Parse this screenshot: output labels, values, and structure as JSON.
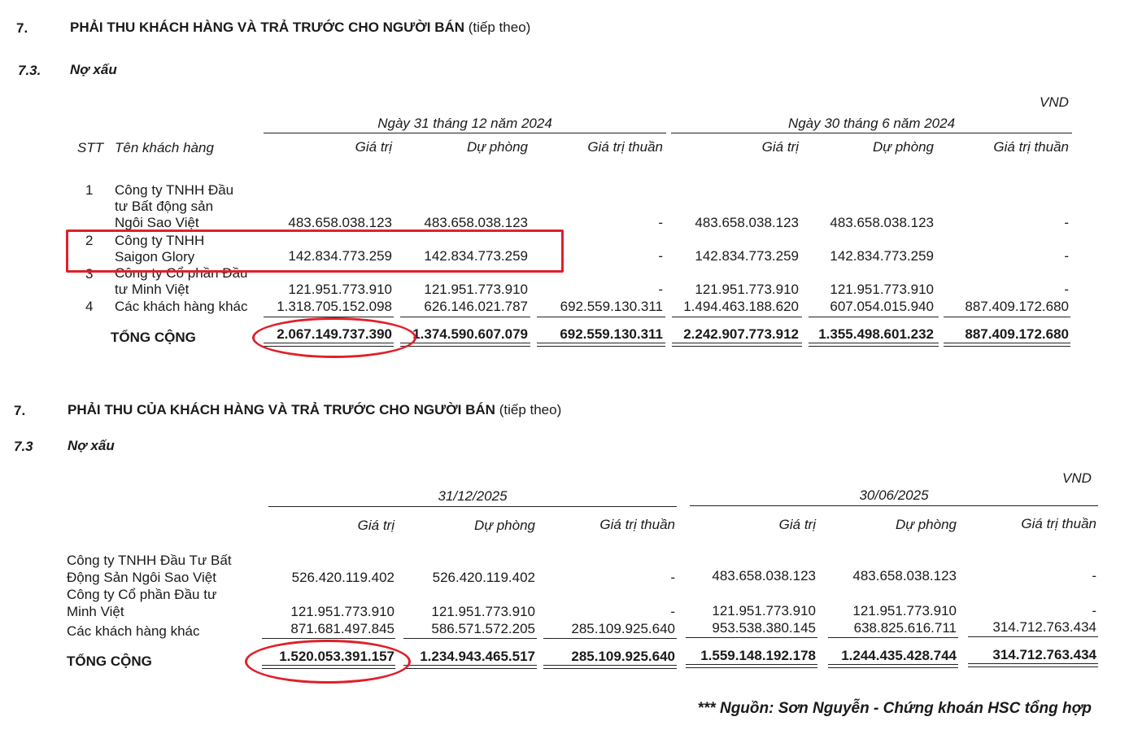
{
  "section_top": {
    "number": "7.",
    "title": "PHẢI THU KHÁCH HÀNG VÀ TRẢ TRƯỚC CHO NGƯỜI BÁN",
    "title_suffix": "(tiếp theo)",
    "sub_number": "7.3.",
    "sub_title": "Nợ xấu",
    "currency": "VND",
    "period1": "Ngày 31 tháng 12 năm 2024",
    "period2": "Ngày 30 tháng 6 năm 2024",
    "col_stt": "STT",
    "col_name": "Tên khách hàng",
    "col_value": "Giá trị",
    "col_provision": "Dự phòng",
    "col_net": "Giá trị thuần",
    "rows": [
      {
        "stt": "1",
        "name_lines": [
          "Công ty TNHH Đầu",
          "tư Bất động sản",
          "Ngôi Sao Việt"
        ],
        "v1": "483.658.038.123",
        "p1": "483.658.038.123",
        "n1": "-",
        "v2": "483.658.038.123",
        "p2": "483.658.038.123",
        "n2": "-"
      },
      {
        "stt": "2",
        "name_lines": [
          "Công ty TNHH",
          "Saigon Glory"
        ],
        "v1": "142.834.773.259",
        "p1": "142.834.773.259",
        "n1": "-",
        "v2": "142.834.773.259",
        "p2": "142.834.773.259",
        "n2": "-"
      },
      {
        "stt": "3",
        "name_lines": [
          "Công ty Cổ phần Đầu",
          "tư Minh Việt"
        ],
        "v1": "121.951.773.910",
        "p1": "121.951.773.910",
        "n1": "-",
        "v2": "121.951.773.910",
        "p2": "121.951.773.910",
        "n2": "-"
      },
      {
        "stt": "4",
        "name_lines": [
          "Các khách hàng khác"
        ],
        "v1": "1.318.705.152.098",
        "p1": "626.146.021.787",
        "n1": "692.559.130.311",
        "v2": "1.494.463.188.620",
        "p2": "607.054.015.940",
        "n2": "887.409.172.680"
      }
    ],
    "total_label": "TỔNG CỘNG",
    "total": {
      "v1": "2.067.149.737.390",
      "p1": "1.374.590.607.079",
      "n1": "692.559.130.311",
      "v2": "2.242.907.773.912",
      "p2": "1.355.498.601.232",
      "n2": "887.409.172.680"
    }
  },
  "section_bottom": {
    "number": "7.",
    "title": "PHẢI THU CỦA KHÁCH HÀNG VÀ TRẢ TRƯỚC CHO NGƯỜI BÁN",
    "title_suffix": "(tiếp theo)",
    "sub_number": "7.3",
    "sub_title": "Nợ xấu",
    "currency": "VND",
    "period1": "31/12/2025",
    "period2": "30/06/2025",
    "col_value": "Giá trị",
    "col_provision": "Dự phòng",
    "col_net": "Giá trị thuần",
    "rows": [
      {
        "name_lines": [
          "Công ty TNHH Đầu Tư Bất",
          "Động Sản Ngôi Sao Việt"
        ],
        "v1": "526.420.119.402",
        "p1": "526.420.119.402",
        "n1": "-",
        "v2": "483.658.038.123",
        "p2": "483.658.038.123",
        "n2": "-"
      },
      {
        "name_lines": [
          "Công ty Cổ phần Đầu tư",
          "Minh Việt"
        ],
        "v1": "121.951.773.910",
        "p1": "121.951.773.910",
        "n1": "-",
        "v2": "121.951.773.910",
        "p2": "121.951.773.910",
        "n2": "-"
      },
      {
        "name_lines": [
          "Các khách hàng khác"
        ],
        "v1": "871.681.497.845",
        "p1": "586.571.572.205",
        "n1": "285.109.925.640",
        "v2": "953.538.380.145",
        "p2": "638.825.616.711",
        "n2": "314.712.763.434"
      }
    ],
    "total_label": "TỔNG CỘNG",
    "total": {
      "v1": "1.520.053.391.157",
      "p1": "1.234.943.465.517",
      "n1": "285.109.925.640",
      "v2": "1.559.148.192.178",
      "p2": "1.244.435.428.744",
      "n2": "314.712.763.434"
    }
  },
  "footer": "*** Nguồn: Sơn Nguyễn - Chứng khoán HSC tổng hợp",
  "colors": {
    "highlight": "#e0202a",
    "text": "#1a1a1a"
  }
}
